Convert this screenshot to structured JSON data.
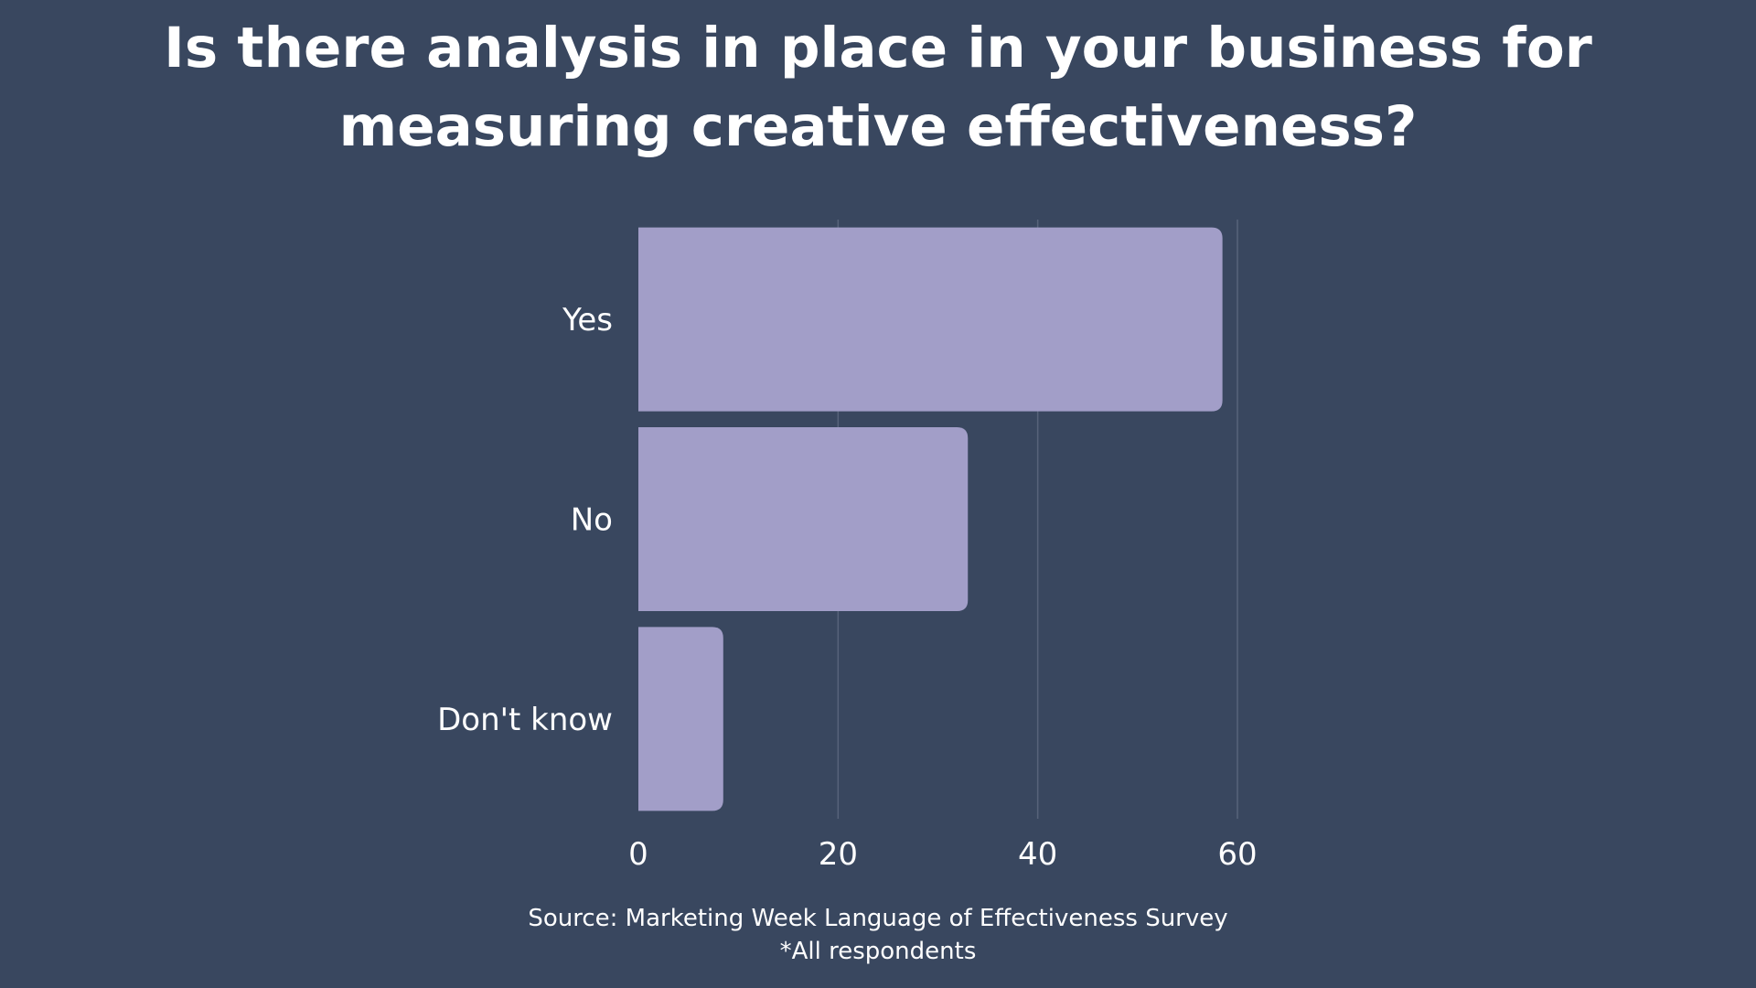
{
  "chart_data": {
    "type": "bar",
    "orientation": "horizontal",
    "title": "Is there analysis in place in your business for measuring creative effectiveness?",
    "title_lines": [
      "Is there analysis in place in your business for",
      "measuring creative effectiveness?"
    ],
    "categories": [
      "Yes",
      "No",
      "Don't know"
    ],
    "values": [
      58.5,
      33,
      8.5
    ],
    "x_ticks": [
      0,
      20,
      40,
      60
    ],
    "xlim": [
      0,
      60
    ],
    "xlabel": "",
    "ylabel": "",
    "grid": true,
    "legend": "none",
    "bar_color": "#a29ec8",
    "grid_color": "#57637a",
    "background_color": "#39475f"
  },
  "footer": {
    "source": "Source: Marketing Week Language of Effectiveness Survey",
    "note": "*All respondents"
  }
}
